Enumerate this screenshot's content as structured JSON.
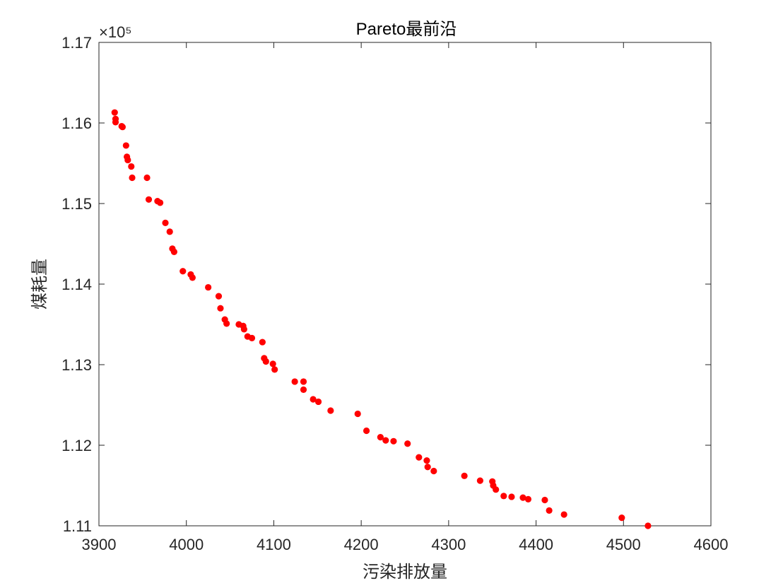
{
  "chart_data": {
    "type": "scatter",
    "title": "Pareto最前沿",
    "xlabel": "污染排放量",
    "ylabel": "煤耗量",
    "y_exponent_label": "×10⁵",
    "xlim": [
      3900,
      4600
    ],
    "ylim": [
      111000,
      117000
    ],
    "x_ticks": [
      3900,
      4000,
      4100,
      4200,
      4300,
      4400,
      4500,
      4600
    ],
    "x_tick_labels": [
      "3900",
      "4000",
      "4100",
      "4200",
      "4300",
      "4400",
      "4500",
      "4600"
    ],
    "y_ticks": [
      111000,
      112000,
      113000,
      114000,
      115000,
      116000,
      117000
    ],
    "y_tick_labels": [
      "1.11",
      "1.12",
      "1.13",
      "1.14",
      "1.15",
      "1.16",
      "1.17"
    ],
    "grid": false,
    "marker_color": "#ff0000",
    "series": [
      {
        "x": [
          3918,
          3919,
          3919,
          3926,
          3927,
          3931,
          3932,
          3933,
          3937,
          3938,
          3955,
          3957,
          3967,
          3970,
          3976,
          3981,
          3984,
          3986,
          3996,
          4005,
          4007,
          4025,
          4037,
          4039,
          4044,
          4046,
          4060,
          4065,
          4066,
          4070,
          4075,
          4087,
          4089,
          4091,
          4099,
          4101,
          4124,
          4134,
          4134,
          4145,
          4151,
          4165,
          4196,
          4206,
          4222,
          4228,
          4237,
          4253,
          4266,
          4275,
          4276,
          4283,
          4318,
          4336,
          4350,
          4351,
          4354,
          4363,
          4372,
          4385,
          4391,
          4410,
          4415,
          4432,
          4498,
          4528
        ],
        "y": [
          116130,
          116050,
          116010,
          115960,
          115950,
          115720,
          115580,
          115540,
          115460,
          115320,
          115320,
          115050,
          115030,
          115010,
          114760,
          114650,
          114440,
          114400,
          114160,
          114120,
          114080,
          113960,
          113850,
          113700,
          113560,
          113510,
          113500,
          113480,
          113440,
          113350,
          113330,
          113280,
          113080,
          113040,
          113010,
          112940,
          112790,
          112790,
          112690,
          112570,
          112540,
          112430,
          112390,
          112180,
          112100,
          112060,
          112050,
          112020,
          111850,
          111810,
          111730,
          111680,
          111620,
          111560,
          111550,
          111500,
          111450,
          111370,
          111360,
          111350,
          111330,
          111320,
          111190,
          111140,
          111100,
          111000
        ]
      }
    ]
  }
}
